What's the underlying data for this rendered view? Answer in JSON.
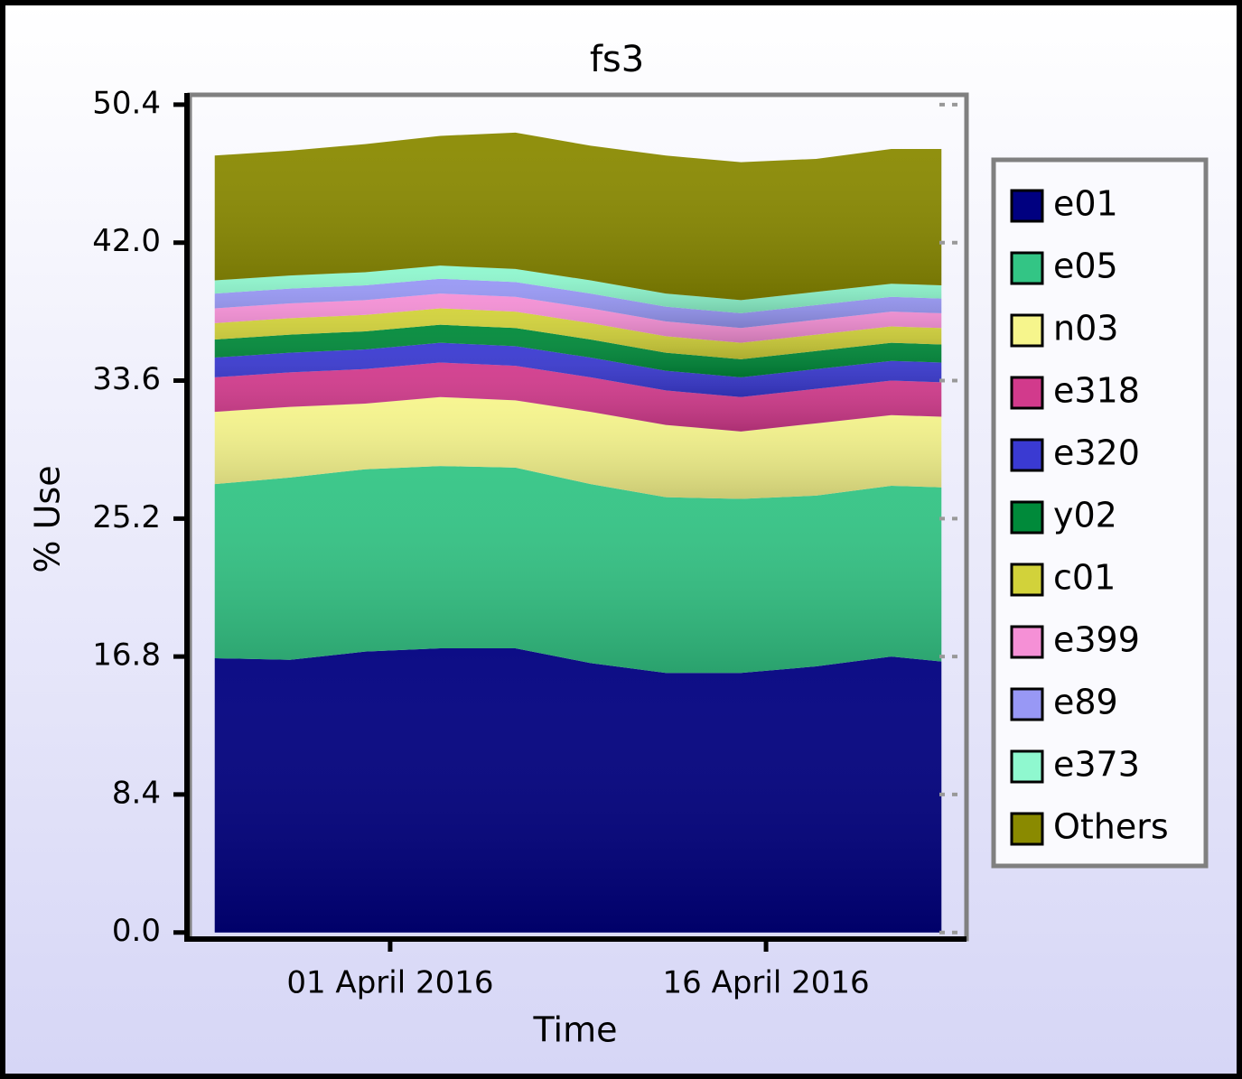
{
  "chart_data": {
    "type": "stacked-area",
    "title": "fs3",
    "x_label": "Time",
    "y_label": "% Use",
    "x": [
      "2016-03-25",
      "2016-03-28",
      "2016-03-31",
      "2016-04-03",
      "2016-04-06",
      "2016-04-09",
      "2016-04-12",
      "2016-04-15",
      "2016-04-18",
      "2016-04-21",
      "2016-04-23"
    ],
    "xlim": [
      "2016-03-24",
      "2016-04-24"
    ],
    "xticks": [
      {
        "value": "2016-04-01",
        "label": "01 April 2016"
      },
      {
        "value": "2016-04-16",
        "label": "16 April 2016"
      }
    ],
    "ylim": [
      -0.4,
      51.0
    ],
    "yticks": [
      {
        "value": 0,
        "label": "0.0"
      },
      8.4,
      16.8,
      25.2,
      33.6,
      {
        "value": 42,
        "label": "42.0"
      },
      50.4
    ],
    "legend": "right",
    "series": [
      {
        "name": "e01",
        "color": "#000080",
        "values": [
          16.7,
          16.6,
          17.1,
          17.3,
          17.3,
          16.4,
          15.8,
          15.8,
          16.2,
          16.8,
          16.5
        ]
      },
      {
        "name": "e05",
        "color": "#33c585",
        "values": [
          10.6,
          11.1,
          11.1,
          11.1,
          11.0,
          10.9,
          10.7,
          10.6,
          10.4,
          10.4,
          10.6
        ]
      },
      {
        "name": "n03",
        "color": "#f6f58c",
        "values": [
          4.4,
          4.3,
          4.0,
          4.2,
          4.1,
          4.4,
          4.4,
          4.1,
          4.4,
          4.3,
          4.3
        ]
      },
      {
        "name": "e318",
        "color": "#d23a8c",
        "values": [
          2.1,
          2.1,
          2.1,
          2.1,
          2.1,
          2.1,
          2.1,
          2.1,
          2.1,
          2.1,
          2.1
        ]
      },
      {
        "name": "e320",
        "color": "#3a3ad2",
        "values": [
          1.2,
          1.2,
          1.2,
          1.2,
          1.2,
          1.2,
          1.2,
          1.2,
          1.2,
          1.2,
          1.2
        ]
      },
      {
        "name": "y02",
        "color": "#008a3a",
        "values": [
          1.1,
          1.1,
          1.1,
          1.1,
          1.1,
          1.1,
          1.1,
          1.1,
          1.1,
          1.1,
          1.1
        ]
      },
      {
        "name": "c01",
        "color": "#d2d23a",
        "values": [
          1.0,
          1.0,
          1.0,
          1.0,
          1.0,
          1.0,
          1.0,
          1.0,
          1.0,
          1.0,
          1.0
        ]
      },
      {
        "name": "e399",
        "color": "#f590d6",
        "values": [
          0.9,
          0.9,
          0.9,
          0.9,
          0.9,
          0.9,
          0.9,
          0.9,
          0.9,
          0.9,
          0.9
        ]
      },
      {
        "name": "e89",
        "color": "#9898f5",
        "values": [
          0.9,
          0.9,
          0.9,
          0.9,
          0.9,
          0.9,
          0.9,
          0.9,
          0.9,
          0.9,
          0.9
        ]
      },
      {
        "name": "e373",
        "color": "#8ff8cf",
        "values": [
          0.8,
          0.8,
          0.8,
          0.8,
          0.8,
          0.8,
          0.8,
          0.8,
          0.8,
          0.8,
          0.8
        ]
      },
      {
        "name": "Others",
        "color": "#8a8a00",
        "values": [
          7.6,
          7.6,
          7.8,
          7.9,
          8.3,
          8.2,
          8.4,
          8.4,
          8.1,
          8.2,
          8.3
        ]
      }
    ]
  }
}
